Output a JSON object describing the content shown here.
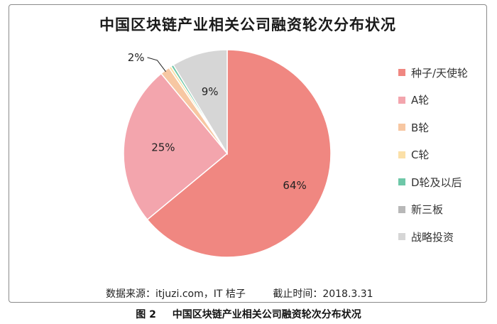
{
  "chart_data": {
    "type": "pie",
    "title": "中国区块链产业相关公司融资轮次分布状况",
    "series": [
      {
        "name": "种子/天使轮",
        "value": 64,
        "label": "64%",
        "color": "#f08781"
      },
      {
        "name": "A轮",
        "value": 25,
        "label": "25%",
        "color": "#f3a5ad"
      },
      {
        "name": "B轮",
        "value": 1.5,
        "label": "2%",
        "color": "#f7c7a2"
      },
      {
        "name": "C轮",
        "value": 0.4,
        "label": "",
        "color": "#fbe0a8"
      },
      {
        "name": "D轮及以后",
        "value": 0.4,
        "label": "",
        "color": "#6ec7a8"
      },
      {
        "name": "新三板",
        "value": 0,
        "label": "",
        "color": "#b8b8b8"
      },
      {
        "name": "战略投资",
        "value": 8.7,
        "label": "9%",
        "color": "#d6d6d6"
      }
    ],
    "legend_position": "right"
  },
  "footer": {
    "source": "数据来源：itjuzi.com，IT 桔子",
    "cutoff": "截止时间：2018.3.31"
  },
  "caption": {
    "number": "图 2",
    "text": "中国区块链产业相关公司融资轮次分布状况"
  }
}
